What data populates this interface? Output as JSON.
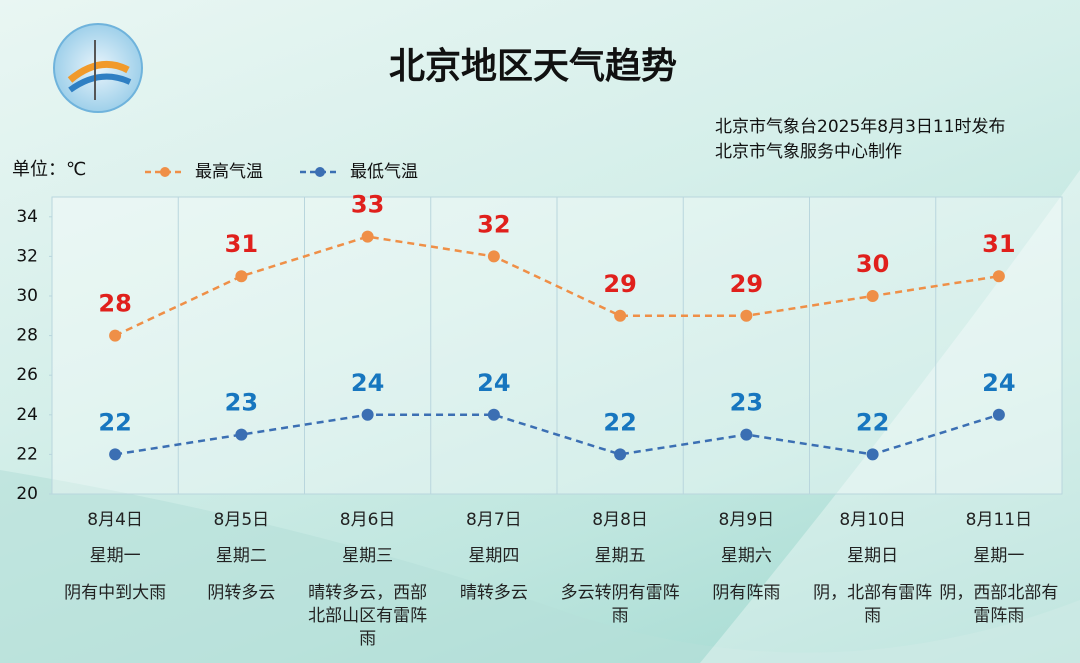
{
  "chart_data": {
    "type": "line",
    "title": "北京地区天气趋势",
    "issuer": "北京市气象台2025年8月3日11时发布",
    "producer": "北京市气象服务中心制作",
    "unit_label": "单位：℃",
    "categories": [
      "8月4日",
      "8月5日",
      "8月6日",
      "8月7日",
      "8月8日",
      "8月9日",
      "8月10日",
      "8月11日"
    ],
    "weekdays": [
      "星期一",
      "星期二",
      "星期三",
      "星期四",
      "星期五",
      "星期六",
      "星期日",
      "星期一"
    ],
    "weather": [
      "阴有中到大雨",
      "阴转多云",
      "晴转多云，西部北部山区有雷阵雨",
      "晴转多云",
      "多云转阴有雷阵雨",
      "阴有阵雨",
      "阴，北部有雷阵雨",
      "阴，西部北部有雷阵雨"
    ],
    "series": [
      {
        "name": "最高气温",
        "color": "#ef8f47",
        "label_color": "#e0201c",
        "linestyle": "dashed",
        "values": [
          28,
          31,
          33,
          32,
          29,
          29,
          30,
          31
        ]
      },
      {
        "name": "最低气温",
        "color": "#3b6fb3",
        "label_color": "#1776bf",
        "linestyle": "dashed",
        "values": [
          22,
          23,
          24,
          24,
          22,
          23,
          22,
          24
        ]
      }
    ],
    "ylim": [
      20,
      35
    ],
    "yticks": [
      20,
      22,
      24,
      26,
      28,
      30,
      32,
      34
    ],
    "grid": true
  }
}
